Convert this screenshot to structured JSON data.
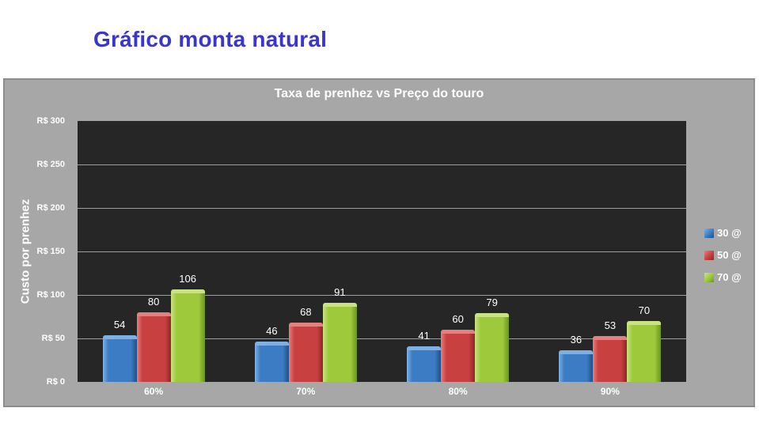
{
  "page": {
    "title": "Gráfico monta natural"
  },
  "chart_data": {
    "type": "bar",
    "title": "Taxa de prenhez vs Preço do touro",
    "xlabel": "",
    "ylabel": "Custo por prenhez",
    "categories": [
      "60%",
      "70%",
      "80%",
      "90%"
    ],
    "series": [
      {
        "name": "30 @",
        "values": [
          54,
          46,
          41,
          36
        ],
        "color": "#3b7cc4",
        "color_light": "#7fb0e4",
        "color_dark": "#1f4f86"
      },
      {
        "name": "50 @",
        "values": [
          80,
          68,
          60,
          53
        ],
        "color": "#c8403f",
        "color_light": "#e4807f",
        "color_dark": "#8c2728"
      },
      {
        "name": "70 @",
        "values": [
          106,
          91,
          79,
          70
        ],
        "color": "#9dc93b",
        "color_light": "#c9e383",
        "color_dark": "#6d9422"
      }
    ],
    "y_axis": {
      "min": 0,
      "max": 300,
      "step": 50,
      "tick_prefix": "R$ "
    },
    "grid": true,
    "legend_position": "right",
    "data_labels": true,
    "colors": {
      "page_title": "#3a35cb",
      "panel_bg": "#a7a7a7",
      "panel_border": "#8d8d8d",
      "plot_bg": "#262626",
      "gridline": "#9e9e9e",
      "text": "#ffffff"
    }
  }
}
